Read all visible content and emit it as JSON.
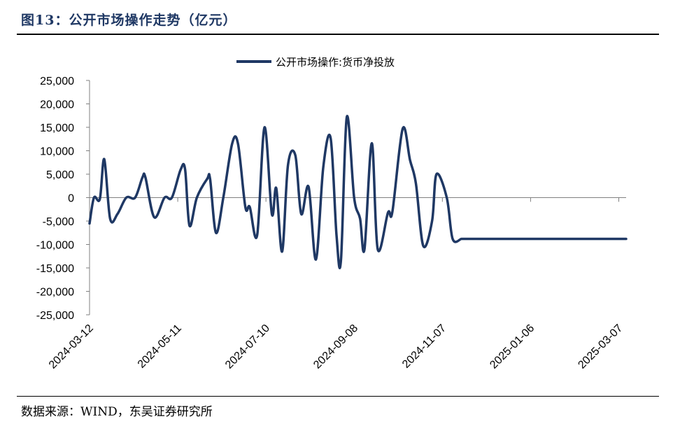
{
  "figure": {
    "title": "图13：公开市场操作走势（亿元）",
    "source": "数据来源：WIND，东吴证券研究所"
  },
  "colors": {
    "series": "#1f3864",
    "axis": "#808080",
    "title": "#1f3864"
  },
  "chart_data": {
    "type": "line",
    "legend_position": "top-center",
    "grid": false,
    "ylim": [
      -25000,
      25000
    ],
    "yticks": [
      -25000,
      -20000,
      -15000,
      -10000,
      -5000,
      0,
      5000,
      10000,
      15000,
      20000,
      25000
    ],
    "ytick_labels": [
      "-25,000",
      "-20,000",
      "-15,000",
      "-10,000",
      "-5,000",
      "0",
      "5,000",
      "10,000",
      "15,000",
      "20,000",
      "25,000"
    ],
    "x_range": [
      "2024-03-12",
      "2025-03-12"
    ],
    "x_tick_labels": [
      "2024-03-12",
      "2024-05-11",
      "2024-07-10",
      "2024-09-08",
      "2024-11-07",
      "2025-01-06",
      "2025-03-07"
    ],
    "series": [
      {
        "name": "公开市场操作:货币净投放",
        "x": [
          "2024-03-12",
          "2024-03-15",
          "2024-03-19",
          "2024-03-22",
          "2024-03-26",
          "2024-03-31",
          "2024-04-06",
          "2024-04-12",
          "2024-04-17",
          "2024-04-19",
          "2024-04-25",
          "2024-05-02",
          "2024-05-07",
          "2024-05-13",
          "2024-05-16",
          "2024-05-19",
          "2024-05-24",
          "2024-05-31",
          "2024-06-02",
          "2024-06-06",
          "2024-06-11",
          "2024-06-17",
          "2024-06-21",
          "2024-06-26",
          "2024-06-29",
          "2024-07-04",
          "2024-07-09",
          "2024-07-14",
          "2024-07-17",
          "2024-07-21",
          "2024-07-25",
          "2024-07-30",
          "2024-08-03",
          "2024-08-08",
          "2024-08-13",
          "2024-08-18",
          "2024-08-23",
          "2024-08-27",
          "2024-08-30",
          "2024-09-03",
          "2024-09-08",
          "2024-09-12",
          "2024-09-15",
          "2024-09-20",
          "2024-09-24",
          "2024-10-01",
          "2024-10-04",
          "2024-10-11",
          "2024-10-16",
          "2024-10-20",
          "2024-10-25",
          "2024-10-31",
          "2024-11-03",
          "2024-11-10",
          "2024-11-14",
          "2024-11-20",
          "2024-11-22",
          "2024-11-25",
          "2024-12-02",
          "2024-12-08",
          "2024-12-15",
          "2024-12-21",
          "2024-12-26",
          "2025-01-02",
          "2025-01-05",
          "2025-01-10",
          "2025-01-16",
          "2025-01-21",
          "2025-01-25",
          "2025-02-01",
          "2025-02-09",
          "2025-02-14",
          "2025-02-19",
          "2025-02-26",
          "2025-03-03",
          "2025-03-06",
          "2025-03-12"
        ],
        "values": [
          -5500,
          0,
          -300,
          8200,
          -4500,
          -3500,
          0,
          0,
          4300,
          4300,
          -4200,
          0,
          0,
          6000,
          6000,
          -6000,
          0,
          4000,
          4000,
          -7500,
          0,
          11500,
          11500,
          -2000,
          -2000,
          -8000,
          15000,
          -3500,
          2000,
          -11500,
          7000,
          9000,
          -3500,
          2300,
          -13200,
          6500,
          12700,
          -8000,
          -13500,
          17200,
          0,
          -4500,
          -11000,
          11600,
          -11000,
          -3200,
          -3000,
          14700,
          8000,
          3000,
          -10300,
          -5000,
          5000,
          0,
          -8800,
          -8800,
          -8800,
          -8800,
          -8800,
          -8800,
          -8800,
          -8800,
          -8800,
          -8800,
          -8800,
          -8800,
          -8800,
          -8800,
          -8800,
          -8800,
          -8800,
          -8800,
          -8800,
          -8800,
          -8800,
          -8800,
          -8800
        ]
      }
    ]
  }
}
